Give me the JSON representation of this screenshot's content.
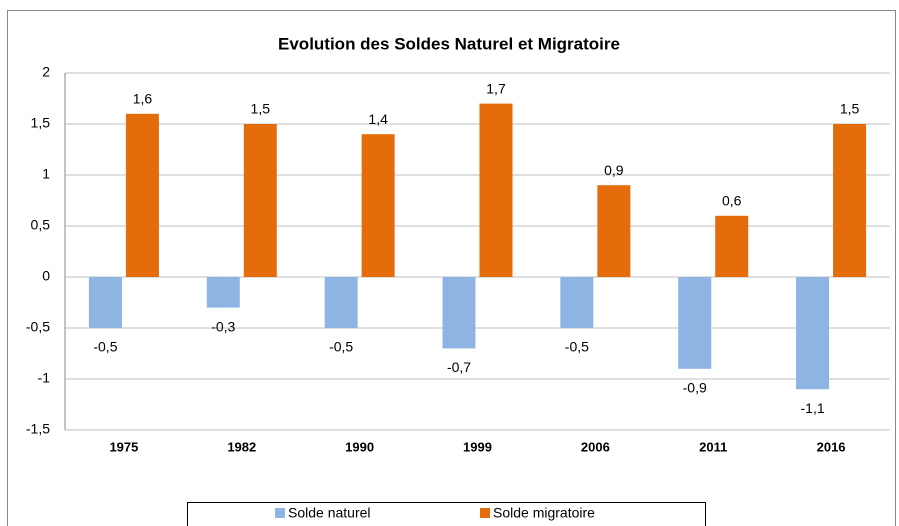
{
  "chart_data": {
    "type": "bar",
    "title": "Evolution des Soldes Naturel et Migratoire",
    "categories": [
      "1975",
      "1982",
      "1990",
      "1999",
      "2006",
      "2011",
      "2016"
    ],
    "series": [
      {
        "name": "Solde naturel",
        "color": "#8db4e2",
        "values": [
          -0.5,
          -0.3,
          -0.5,
          -0.7,
          -0.5,
          -0.9,
          -1.1
        ],
        "value_labels": [
          "-0,5",
          "-0,3",
          "-0,5",
          "-0,7",
          "-0,5",
          "-0,9",
          "-1,1"
        ]
      },
      {
        "name": "Solde migratoire",
        "color": "#e46c0a",
        "values": [
          1.6,
          1.5,
          1.4,
          1.7,
          0.9,
          0.6,
          1.5
        ],
        "value_labels": [
          "1,6",
          "1,5",
          "1,4",
          "1,7",
          "0,9",
          "0,6",
          "1,5"
        ]
      }
    ],
    "ylim": [
      -1.5,
      2
    ],
    "yticks": [
      -1,
      {
        "value": -1.5,
        "label": "-1,5"
      },
      {
        "value": -0.5,
        "label": "-0,5"
      },
      0,
      {
        "value": 0.5,
        "label": "0,5"
      },
      1,
      {
        "value": 1.5,
        "label": "1,5"
      },
      2
    ],
    "grid": true,
    "legend": "bottom"
  }
}
